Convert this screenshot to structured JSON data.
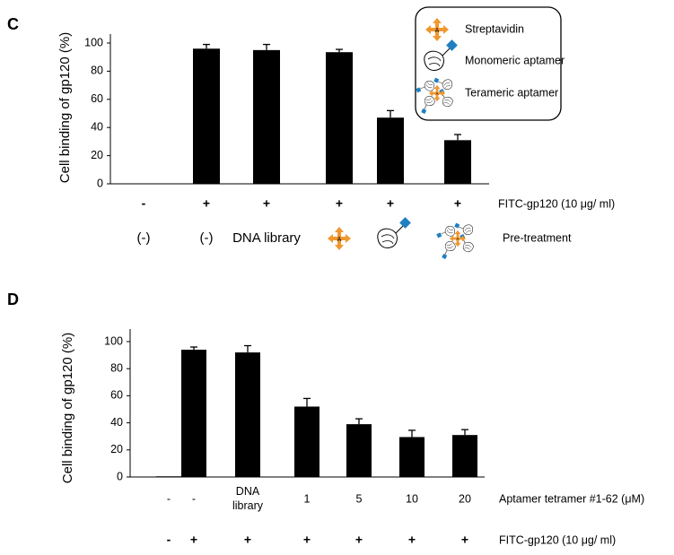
{
  "chart_data": [
    {
      "type": "bar",
      "panel_label": "C",
      "ylabel": "Cell binding of gp120 (%)",
      "values": [
        0,
        96,
        95,
        93.5,
        47,
        31
      ],
      "errors": [
        0,
        3,
        4,
        2,
        5,
        4
      ],
      "color": "#000000",
      "ylim": [
        0,
        100
      ],
      "yticks": [
        0,
        20,
        40,
        60,
        80,
        100
      ],
      "label_rows": [
        {
          "label": "FITC-gp120 (10 μg/ ml)",
          "cells": [
            "-",
            "+",
            "+",
            "+",
            "+",
            "+"
          ]
        },
        {
          "label": "Pre-treatment",
          "cells": [
            "(-)",
            "(-)",
            "DNA library",
            null,
            null,
            null
          ]
        }
      ],
      "legend": [
        "Streptavidin",
        "Monomeric aptamer",
        "Terameric aptamer"
      ]
    },
    {
      "type": "bar",
      "panel_label": "D",
      "ylabel": "Cell binding of gp120 (%)",
      "values": [
        0.5,
        94,
        92,
        52,
        39,
        29.5,
        31
      ],
      "errors": [
        0,
        2,
        5,
        6,
        4,
        5,
        4
      ],
      "color": "#000000",
      "ylim": [
        0,
        100
      ],
      "yticks": [
        0,
        20,
        40,
        60,
        80,
        100
      ],
      "label_rows": [
        {
          "label": "Aptamer tetramer #1-62 (μM)",
          "cells": [
            "-",
            "-",
            "DNA\nlibrary",
            "1",
            "5",
            "10",
            "20"
          ]
        },
        {
          "label": "FITC-gp120 (10 μg/ ml)",
          "cells": [
            "-",
            "+",
            "+",
            "+",
            "+",
            "+",
            "+"
          ]
        }
      ]
    }
  ]
}
